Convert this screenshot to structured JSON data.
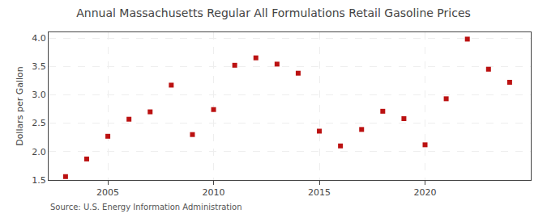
{
  "chart_data": {
    "type": "scatter",
    "title": "Annual Massachusetts Regular All Formulations Retail Gasoline Prices",
    "ylabel": "Dollars per Gallon",
    "source": "Source: U.S. Energy Information Administration",
    "x": [
      2003,
      2004,
      2005,
      2006,
      2007,
      2008,
      2009,
      2010,
      2011,
      2012,
      2013,
      2014,
      2015,
      2016,
      2017,
      2018,
      2019,
      2020,
      2021,
      2022,
      2023,
      2024
    ],
    "values": [
      1.56,
      1.87,
      2.27,
      2.57,
      2.7,
      3.17,
      2.3,
      2.74,
      3.52,
      3.65,
      3.54,
      3.38,
      2.36,
      2.1,
      2.39,
      2.71,
      2.58,
      2.12,
      2.93,
      3.98,
      3.45,
      3.22
    ],
    "color": "#bb1111",
    "marker": "square",
    "xlim": [
      2002.2,
      2025.0
    ],
    "xticks": [
      2005,
      2010,
      2015,
      2020
    ],
    "ylim": [
      1.5,
      4.1
    ],
    "yticks": [
      1.5,
      {
        "value": 2.0,
        "label": "2.0"
      },
      2.5,
      {
        "value": 3.0,
        "label": "3.0"
      },
      3.5,
      {
        "value": 4.0,
        "label": "4.0"
      }
    ],
    "grid": true
  }
}
